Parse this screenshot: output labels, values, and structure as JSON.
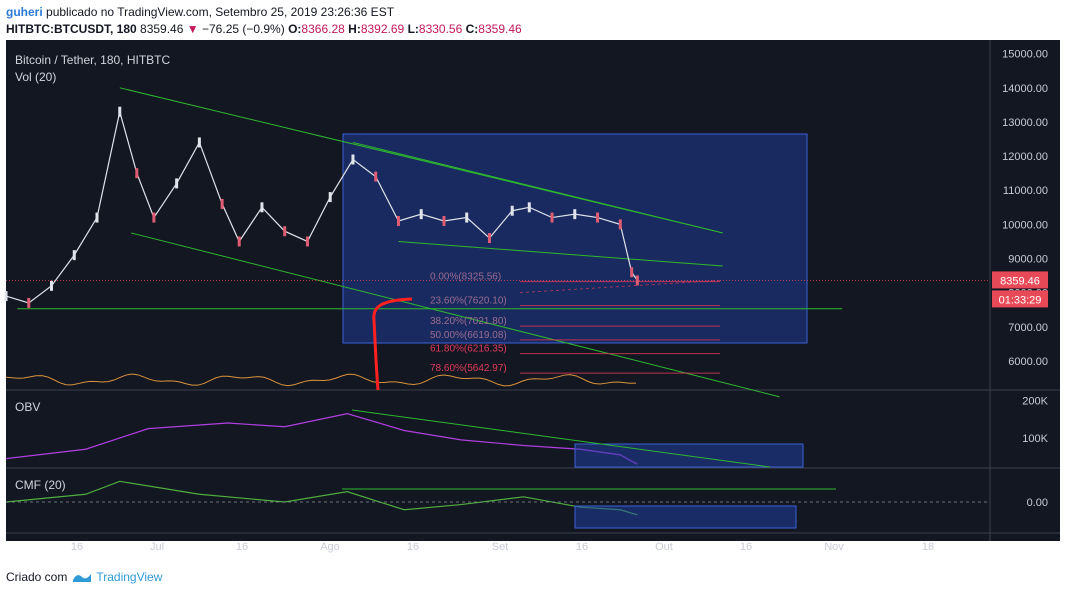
{
  "header": {
    "publisher": "guheri",
    "published_text": "publicado no TradingView.com, Setembro 25, 2019 23:26:36 EST",
    "symbol": "HITBTC:BTCUSDT, 180",
    "last": "8359.46",
    "change": "−76.25 (−0.9%)",
    "o_label": "O:",
    "o_value": "8366.28",
    "h_label": "H:",
    "h_value": "8392.69",
    "l_label": "L:",
    "l_value": "8330.56",
    "c_label": "C:",
    "c_value": "8359.46"
  },
  "footer": {
    "created_text": "Criado com",
    "brand": "TradingView"
  },
  "colors": {
    "background": "#131722",
    "up": "#dfe3ea",
    "down": "#e05c72",
    "trend": "#2fb82f",
    "fib": "#e23a5a",
    "box": "rgba(35,75,200,0.55)",
    "obv": "#b03fe0",
    "cmf": "#4fae3e",
    "volume_ma": "#d9923b",
    "price_tag": "#e84957",
    "marker": "#ff2020"
  },
  "chart_data": {
    "type": "line",
    "title": "Bitcoin / Tether, 180, HITBTC",
    "volume_label": "Vol (20)",
    "price_axis": {
      "ticks": [
        "15000.00",
        "14000.00",
        "13000.00",
        "12000.00",
        "11000.00",
        "10000.00",
        "9000.00",
        "8000.00",
        "7000.00",
        "6000.00"
      ],
      "range": [
        5150,
        15400
      ],
      "last_price_tag": "8359.46",
      "countdown_tag": "01:33:29"
    },
    "time_axis": {
      "labels": [
        "16",
        "Jul",
        "16",
        "Ago",
        "16",
        "Set",
        "16",
        "Out",
        "16",
        "Nov",
        "18"
      ]
    },
    "price_series": {
      "name": "BTCUSDT",
      "x": [
        "2019-06-06",
        "2019-06-10",
        "2019-06-14",
        "2019-06-18",
        "2019-06-22",
        "2019-06-26",
        "2019-06-29",
        "2019-07-02",
        "2019-07-06",
        "2019-07-10",
        "2019-07-14",
        "2019-07-17",
        "2019-07-21",
        "2019-07-25",
        "2019-07-29",
        "2019-08-02",
        "2019-08-06",
        "2019-08-10",
        "2019-08-14",
        "2019-08-18",
        "2019-08-22",
        "2019-08-26",
        "2019-08-30",
        "2019-09-03",
        "2019-09-06",
        "2019-09-10",
        "2019-09-14",
        "2019-09-18",
        "2019-09-22",
        "2019-09-24",
        "2019-09-25"
      ],
      "y": [
        7900,
        7700,
        8200,
        9100,
        10200,
        13300,
        11500,
        10200,
        11200,
        12400,
        10600,
        9500,
        10500,
        9800,
        9500,
        10800,
        11900,
        11400,
        10100,
        10300,
        10100,
        10200,
        9600,
        10400,
        10500,
        10200,
        10300,
        10200,
        10000,
        8600,
        8359
      ]
    },
    "trendlines": [
      {
        "name": "main-upper",
        "x": [
          "2019-06-26",
          "2019-10-10"
        ],
        "y": [
          14000,
          9750
        ]
      },
      {
        "name": "main-lower",
        "x": [
          "2019-06-28",
          "2019-10-20"
        ],
        "y": [
          9750,
          4950
        ]
      },
      {
        "name": "support",
        "x": [
          "2019-06-08",
          "2019-10-31"
        ],
        "y": [
          7530,
          7530
        ]
      },
      {
        "name": "inner-upper",
        "x": [
          "2019-08-06",
          "2019-10-10"
        ],
        "y": [
          12400,
          9750
        ]
      },
      {
        "name": "inner-lower",
        "x": [
          "2019-08-14",
          "2019-10-10"
        ],
        "y": [
          9500,
          8780
        ]
      }
    ],
    "fib_levels": [
      {
        "label": "0.00%(8325.56)",
        "value": 8325.56
      },
      {
        "label": "23.60%(7620.10)",
        "value": 7620.1
      },
      {
        "label": "38.20%(7021.80)",
        "value": 7021.8
      },
      {
        "label": "50.00%(6619.08)",
        "value": 6619.08
      },
      {
        "label": "61.80%(6216.35)",
        "value": 6216.35
      },
      {
        "label": "78.60%(5642.97)",
        "value": 5642.97
      }
    ],
    "indicators": [
      {
        "name": "OBV",
        "ticks": [
          "200K",
          "100K"
        ],
        "range": [
          20,
          220
        ],
        "x": [
          "2019-06-06",
          "2019-06-20",
          "2019-07-01",
          "2019-07-15",
          "2019-07-25",
          "2019-08-05",
          "2019-08-15",
          "2019-08-25",
          "2019-09-05",
          "2019-09-15",
          "2019-09-22",
          "2019-09-25"
        ],
        "y": [
          45,
          70,
          125,
          140,
          130,
          165,
          120,
          95,
          80,
          70,
          55,
          30
        ]
      },
      {
        "name": "CMF (20)",
        "ticks": [
          "0.00"
        ],
        "range": [
          -0.12,
          0.12
        ],
        "x": [
          "2019-06-06",
          "2019-06-20",
          "2019-06-26",
          "2019-07-10",
          "2019-07-25",
          "2019-08-05",
          "2019-08-15",
          "2019-08-25",
          "2019-09-05",
          "2019-09-15",
          "2019-09-22",
          "2019-09-25"
        ],
        "y": [
          0.0,
          0.03,
          0.08,
          0.03,
          0.0,
          0.04,
          -0.03,
          -0.01,
          0.02,
          -0.02,
          -0.03,
          -0.05
        ]
      }
    ]
  }
}
